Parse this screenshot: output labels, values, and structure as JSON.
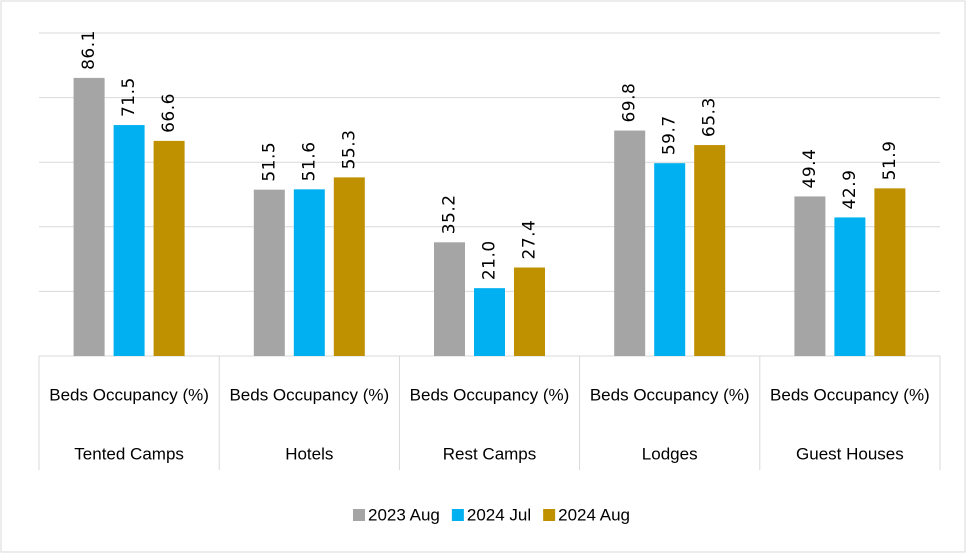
{
  "chart_data": {
    "type": "bar",
    "categories": [
      "Tented Camps",
      "Hotels",
      "Rest Camps",
      "Lodges",
      "Guest Houses"
    ],
    "category_measure": [
      "Beds Occupancy (%)",
      "Beds Occupancy (%)",
      "Beds Occupancy (%)",
      "Beds Occupancy (%)",
      "Beds Occupancy (%)"
    ],
    "series": [
      {
        "name": "2023 Aug",
        "color": "#a5a5a5",
        "values": [
          86.1,
          51.5,
          35.2,
          69.8,
          49.4
        ],
        "value_labels": [
          "86.1",
          "51.5",
          "35.2",
          "69.8",
          "49.4"
        ]
      },
      {
        "name": "2024 Jul",
        "color": "#00b0f0",
        "values": [
          71.5,
          51.6,
          21.0,
          59.7,
          42.9
        ],
        "value_labels": [
          "71.5",
          "51.6",
          "21.0",
          "59.7",
          "42.9"
        ]
      },
      {
        "name": "2024 Aug",
        "color": "#bf9000",
        "values": [
          66.6,
          55.3,
          27.4,
          65.3,
          51.9
        ],
        "value_labels": [
          "66.6",
          "55.3",
          "27.4",
          "65.3",
          "51.9"
        ]
      }
    ],
    "ylim": [
      0,
      100
    ],
    "yticks": [
      0,
      20,
      40,
      60,
      80,
      100
    ],
    "grid": true,
    "legend": "bottom"
  }
}
